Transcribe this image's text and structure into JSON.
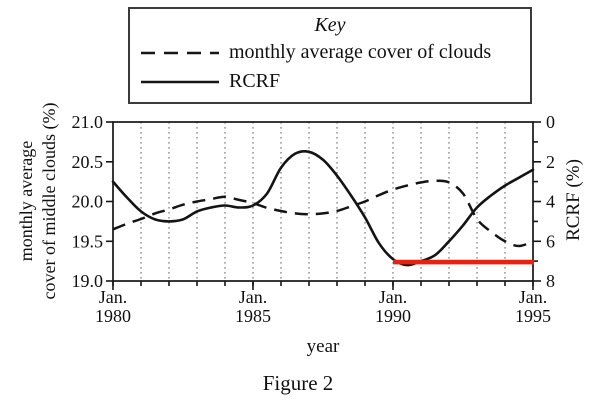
{
  "key_box": {
    "title": "Key",
    "entries": [
      {
        "label": "monthly average cover of clouds",
        "line_style": "dashed"
      },
      {
        "label": "RCRF",
        "line_style": "solid"
      }
    ]
  },
  "caption": "Figure 2",
  "colors": {
    "line_color": "#141414",
    "grid_color": "#5f5f5f",
    "annotation_red": "#e8220e"
  },
  "chart_data": {
    "type": "line",
    "title": "",
    "x_axis": {
      "label": "year",
      "range": [
        1980,
        1995
      ],
      "minor_tick_step_years": 1,
      "major_ticks": [
        {
          "line1": "Jan.",
          "line2": "1980",
          "value": 1980
        },
        {
          "line1": "Jan.",
          "line2": "1985",
          "value": 1985
        },
        {
          "line1": "Jan.",
          "line2": "1990",
          "value": 1990
        },
        {
          "line1": "Jan.",
          "line2": "1995",
          "value": 1995
        }
      ],
      "gridlines": "dotted vertical line at every year"
    },
    "left_axis": {
      "label_lines": [
        "monthly average",
        "cover of middle clouds (%)"
      ],
      "range": [
        19.0,
        21.0
      ],
      "tick_values": [
        21.0,
        20.5,
        20.0,
        19.5,
        19.0
      ],
      "tick_labels": [
        "21.0",
        "20.5",
        "20.0",
        "19.5",
        "19.0"
      ]
    },
    "right_axis": {
      "label": "RCRF (%)",
      "range_top_to_bottom": [
        0,
        8
      ],
      "inverted": true,
      "tick_values": [
        0,
        2,
        4,
        6,
        8
      ],
      "tick_labels": [
        "0",
        "2",
        "4",
        "6",
        "8"
      ],
      "minor_tick_values": [
        1,
        3,
        5,
        7
      ]
    },
    "x_years": [
      1980,
      1980.5,
      1981,
      1981.5,
      1982,
      1982.5,
      1983,
      1983.5,
      1984,
      1984.5,
      1985,
      1985.5,
      1986,
      1986.5,
      1987,
      1987.5,
      1988,
      1988.5,
      1989,
      1989.5,
      1990,
      1990.5,
      1991,
      1991.5,
      1992,
      1992.5,
      1993,
      1993.5,
      1994,
      1994.5,
      1995
    ],
    "series": [
      {
        "name": "monthly average cover of clouds",
        "style": "dashed",
        "axis": "left",
        "values": [
          19.65,
          19.72,
          19.78,
          19.85,
          19.9,
          19.96,
          20.0,
          20.03,
          20.06,
          20.02,
          19.98,
          19.92,
          19.88,
          19.85,
          19.84,
          19.85,
          19.88,
          19.94,
          20.0,
          20.08,
          20.15,
          20.2,
          20.24,
          20.26,
          20.24,
          20.1,
          19.78,
          19.62,
          19.5,
          19.44,
          19.5
        ]
      },
      {
        "name": "RCRF",
        "style": "solid",
        "axis": "right",
        "values": [
          3.0,
          3.8,
          4.5,
          4.9,
          5.0,
          4.9,
          4.5,
          4.3,
          4.2,
          4.3,
          4.2,
          3.6,
          2.3,
          1.6,
          1.5,
          1.9,
          2.7,
          3.7,
          4.8,
          6.1,
          6.9,
          7.2,
          7.0,
          6.7,
          6.0,
          5.2,
          4.3,
          3.7,
          3.2,
          2.8,
          2.4
        ]
      }
    ],
    "annotation": {
      "type": "horizontal_line",
      "description": "red highlight segment",
      "axis": "right",
      "value": 7.05,
      "x_start": 1990,
      "x_end": 1995,
      "color": "#e8220e"
    }
  }
}
